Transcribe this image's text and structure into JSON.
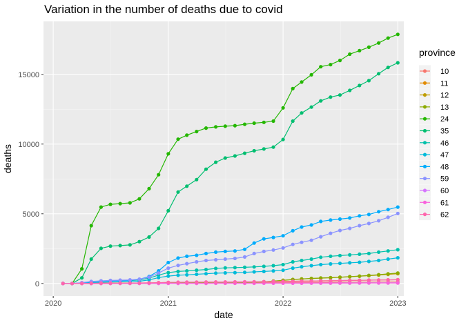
{
  "chart_data": {
    "type": "line",
    "title": "Variation in the number of deaths due to covid",
    "xlabel": "date",
    "ylabel": "deaths",
    "xlim": [
      "2019-12-01",
      "2023-01-20"
    ],
    "ylim": [
      -900,
      18800
    ],
    "x_ticks": [
      {
        "date": "2020-01-01",
        "label": "2020"
      },
      {
        "date": "2021-01-01",
        "label": "2021"
      },
      {
        "date": "2022-01-01",
        "label": "2022"
      },
      {
        "date": "2023-01-01",
        "label": "2023"
      }
    ],
    "y_ticks": [
      0,
      5000,
      10000,
      15000
    ],
    "grid": true,
    "legend": {
      "title": "province",
      "position": "right"
    },
    "x": [
      "2020-02-01",
      "2020-03-01",
      "2020-04-01",
      "2020-05-01",
      "2020-06-01",
      "2020-07-01",
      "2020-08-01",
      "2020-09-01",
      "2020-10-01",
      "2020-11-01",
      "2020-12-01",
      "2021-01-01",
      "2021-02-01",
      "2021-03-01",
      "2021-04-01",
      "2021-05-01",
      "2021-06-01",
      "2021-07-01",
      "2021-08-01",
      "2021-09-01",
      "2021-10-01",
      "2021-11-01",
      "2021-12-01",
      "2022-01-01",
      "2022-02-01",
      "2022-03-01",
      "2022-04-01",
      "2022-05-01",
      "2022-06-01",
      "2022-07-01",
      "2022-08-01",
      "2022-09-01",
      "2022-10-01",
      "2022-11-01",
      "2022-12-01",
      "2023-01-01"
    ],
    "series": [
      {
        "name": "10",
        "color": "#F8766D",
        "values": [
          0,
          0,
          0,
          5,
          10,
          12,
          14,
          16,
          18,
          22,
          30,
          40,
          45,
          50,
          55,
          58,
          60,
          62,
          64,
          66,
          68,
          70,
          75,
          80,
          85,
          88,
          90,
          92,
          94,
          96,
          98,
          100,
          102,
          104,
          106,
          108
        ]
      },
      {
        "name": "11",
        "color": "#E18A00",
        "values": [
          0,
          0,
          10,
          20,
          25,
          28,
          30,
          32,
          35,
          40,
          55,
          70,
          80,
          85,
          90,
          95,
          98,
          100,
          105,
          110,
          115,
          120,
          130,
          145,
          160,
          170,
          180,
          190,
          200,
          210,
          220,
          230,
          240,
          250,
          260,
          270
        ]
      },
      {
        "name": "12",
        "color": "#BE9C00",
        "values": [
          0,
          0,
          5,
          10,
          15,
          18,
          20,
          22,
          25,
          30,
          40,
          55,
          60,
          65,
          70,
          75,
          78,
          80,
          85,
          90,
          100,
          120,
          160,
          220,
          280,
          320,
          350,
          380,
          410,
          440,
          480,
          520,
          560,
          600,
          650,
          700
        ]
      },
      {
        "name": "13",
        "color": "#8CAB00",
        "values": [
          0,
          0,
          5,
          10,
          15,
          18,
          20,
          22,
          25,
          30,
          40,
          55,
          60,
          65,
          70,
          75,
          78,
          80,
          85,
          90,
          100,
          120,
          170,
          230,
          290,
          330,
          360,
          390,
          420,
          450,
          490,
          530,
          580,
          630,
          690,
          750
        ]
      },
      {
        "name": "24",
        "color": "#24B700",
        "values": [
          0,
          0,
          1050,
          4150,
          5480,
          5680,
          5730,
          5780,
          6070,
          6800,
          7800,
          9300,
          10350,
          10640,
          10900,
          11150,
          11230,
          11280,
          11320,
          11420,
          11500,
          11560,
          11650,
          12600,
          13980,
          14450,
          14970,
          15550,
          15700,
          16000,
          16450,
          16700,
          16950,
          17250,
          17600,
          17870
        ]
      },
      {
        "name": "35",
        "color": "#00BE70",
        "values": [
          0,
          0,
          400,
          1750,
          2520,
          2680,
          2720,
          2770,
          3000,
          3330,
          3950,
          5220,
          6560,
          6980,
          7450,
          8200,
          8700,
          9000,
          9150,
          9340,
          9520,
          9650,
          9780,
          10330,
          11650,
          12230,
          12650,
          13100,
          13370,
          13520,
          13850,
          14200,
          14550,
          15050,
          15500,
          15830
        ]
      },
      {
        "name": "46",
        "color": "#00C1AB",
        "values": [
          0,
          0,
          30,
          120,
          170,
          190,
          200,
          210,
          250,
          380,
          600,
          780,
          860,
          900,
          950,
          1000,
          1080,
          1120,
          1140,
          1160,
          1190,
          1230,
          1280,
          1350,
          1550,
          1650,
          1750,
          1880,
          1950,
          2000,
          2050,
          2100,
          2150,
          2250,
          2330,
          2420
        ]
      },
      {
        "name": "47",
        "color": "#00BBDA",
        "values": [
          0,
          0,
          20,
          60,
          90,
          110,
          120,
          130,
          160,
          260,
          420,
          530,
          590,
          620,
          660,
          700,
          740,
          760,
          780,
          800,
          830,
          860,
          900,
          950,
          1100,
          1200,
          1280,
          1350,
          1400,
          1440,
          1480,
          1520,
          1580,
          1650,
          1750,
          1840
        ]
      },
      {
        "name": "48",
        "color": "#00ACFC",
        "values": [
          0,
          0,
          50,
          120,
          170,
          190,
          200,
          220,
          300,
          500,
          900,
          1500,
          1820,
          1950,
          2020,
          2150,
          2250,
          2300,
          2330,
          2450,
          2900,
          3200,
          3300,
          3420,
          3780,
          4050,
          4200,
          4450,
          4550,
          4620,
          4700,
          4850,
          4950,
          5150,
          5300,
          5480
        ]
      },
      {
        "name": "59",
        "color": "#8B93FF",
        "values": [
          0,
          0,
          60,
          150,
          190,
          220,
          240,
          260,
          310,
          450,
          750,
          1100,
          1300,
          1420,
          1550,
          1650,
          1700,
          1750,
          1800,
          1900,
          2150,
          2300,
          2400,
          2550,
          2800,
          2950,
          3100,
          3350,
          3600,
          3800,
          3950,
          4150,
          4300,
          4500,
          4750,
          5020
        ]
      },
      {
        "name": "60",
        "color": "#D575FE",
        "values": [
          0,
          0,
          0,
          2,
          4,
          5,
          6,
          7,
          8,
          10,
          12,
          14,
          15,
          16,
          17,
          18,
          19,
          20,
          21,
          22,
          23,
          24,
          25,
          26,
          28,
          30,
          32,
          34,
          36,
          38,
          40,
          42,
          44,
          46,
          48,
          50
        ]
      },
      {
        "name": "61",
        "color": "#F962DD",
        "values": [
          0,
          0,
          0,
          1,
          2,
          3,
          4,
          5,
          6,
          7,
          8,
          9,
          10,
          11,
          12,
          13,
          14,
          15,
          16,
          17,
          18,
          19,
          20,
          21,
          22,
          23,
          24,
          25,
          26,
          27,
          28,
          29,
          30,
          31,
          32,
          33
        ]
      },
      {
        "name": "62",
        "color": "#FF65AC",
        "values": [
          0,
          0,
          5,
          15,
          20,
          25,
          28,
          30,
          35,
          45,
          60,
          80,
          90,
          95,
          100,
          105,
          110,
          112,
          115,
          120,
          125,
          130,
          140,
          150,
          160,
          170,
          180,
          190,
          200,
          210,
          220,
          230,
          240,
          250,
          260,
          270
        ]
      }
    ]
  }
}
